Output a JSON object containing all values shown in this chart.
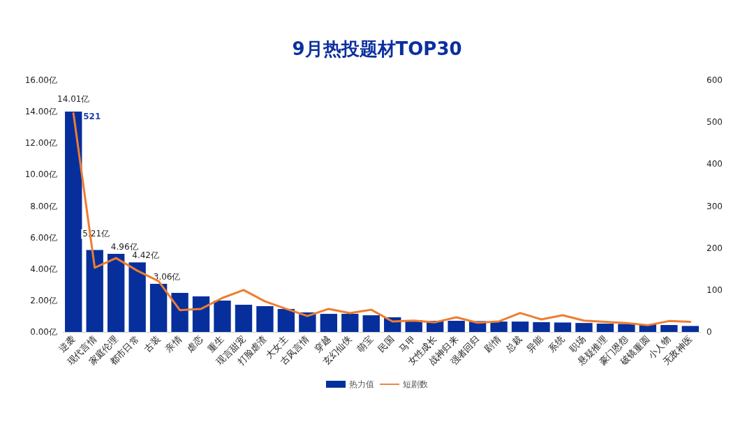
{
  "chart_data": {
    "type": "bar",
    "title": "9月热投题材TOP30",
    "categories": [
      "逆袭",
      "现代言情",
      "家庭伦理",
      "都市日常",
      "古装",
      "亲情",
      "虐恋",
      "重生",
      "现言甜宠",
      "打脸虐渣",
      "大女主",
      "古风言情",
      "穿越",
      "玄幻仙侠",
      "萌宝",
      "民国",
      "马甲",
      "女性成长",
      "战神归来",
      "强者回归",
      "剧情",
      "总裁",
      "异能",
      "系统",
      "职场",
      "悬疑推理",
      "豪门恩怨",
      "破镜重圆",
      "小人物",
      "无敌神医"
    ],
    "series": [
      {
        "name": "热力值",
        "color": "#062f9c",
        "values": [
          14.01,
          5.21,
          4.96,
          4.42,
          3.06,
          2.48,
          2.26,
          2.0,
          1.73,
          1.64,
          1.46,
          1.24,
          1.15,
          1.15,
          1.06,
          0.93,
          0.75,
          0.71,
          0.71,
          0.69,
          0.66,
          0.66,
          0.62,
          0.6,
          0.57,
          0.53,
          0.51,
          0.49,
          0.44,
          0.38
        ],
        "value_labels": [
          "14.01亿",
          "5.21亿",
          "4.96亿",
          "4.42亿",
          "3.06亿",
          null,
          null,
          null,
          null,
          null,
          null,
          null,
          null,
          null,
          null,
          null,
          null,
          null,
          null,
          null,
          null,
          null,
          null,
          null,
          null,
          null,
          null,
          null,
          null,
          null
        ]
      },
      {
        "name": "短剧数",
        "type": "line",
        "axis": "y2",
        "color": "#ed7d31",
        "values": [
          521,
          153,
          176,
          146,
          121,
          52,
          55,
          81,
          100,
          73,
          55,
          38,
          55,
          45,
          53,
          25,
          27,
          23,
          35,
          22,
          25,
          45,
          30,
          40,
          27,
          24,
          21,
          16,
          26,
          24
        ],
        "value_labels": [
          "521",
          null,
          null,
          null,
          null,
          null,
          null,
          null,
          null,
          null,
          null,
          null,
          null,
          null,
          null,
          null,
          null,
          null,
          null,
          null,
          null,
          null,
          null,
          null,
          null,
          null,
          null,
          null,
          null,
          null
        ]
      }
    ],
    "ylim": [
      0,
      16
    ],
    "yticks": [
      {
        "value": 0,
        "label": "0.00亿"
      },
      {
        "value": 2,
        "label": "2.00亿"
      },
      {
        "value": 4,
        "label": "4.00亿"
      },
      {
        "value": 6,
        "label": "6.00亿"
      },
      {
        "value": 8,
        "label": "8.00亿"
      },
      {
        "value": 10,
        "label": "10.00亿"
      },
      {
        "value": 12,
        "label": "12.00亿"
      },
      {
        "value": 14,
        "label": "14.00亿"
      },
      {
        "value": 16,
        "label": "16.00亿"
      }
    ],
    "y2lim": [
      0,
      600
    ],
    "y2ticks": [
      0,
      100,
      200,
      300,
      400,
      500,
      600
    ],
    "grid": false,
    "legend": "bottom",
    "marker": "none",
    "line_style": "solid"
  }
}
